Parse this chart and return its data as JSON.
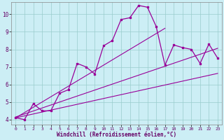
{
  "x": [
    0,
    1,
    2,
    3,
    4,
    5,
    6,
    7,
    8,
    9,
    10,
    11,
    12,
    13,
    14,
    15,
    16,
    17,
    18,
    19,
    20,
    21,
    22,
    23
  ],
  "line1": [
    4.1,
    4.0,
    4.9,
    4.5,
    4.5,
    5.5,
    5.7,
    7.2,
    7.0,
    6.6,
    8.2,
    8.5,
    9.7,
    9.8,
    10.5,
    10.4,
    9.3,
    7.1,
    8.25,
    8.1,
    8.0,
    7.2,
    8.3,
    7.5
  ],
  "reg1": [
    4.1,
    4.4,
    4.7,
    5.0,
    5.3,
    5.6,
    5.9,
    6.2,
    6.5,
    6.8,
    7.1,
    7.4,
    7.7,
    8.0,
    8.3,
    8.6,
    8.9,
    9.2,
    null,
    null,
    null,
    null,
    null,
    null
  ],
  "reg2": [
    4.15,
    4.32,
    4.49,
    4.66,
    4.83,
    5.0,
    5.17,
    5.34,
    5.51,
    5.68,
    5.85,
    6.02,
    6.19,
    6.36,
    6.53,
    6.7,
    6.87,
    7.04,
    7.21,
    7.38,
    7.55,
    7.72,
    7.89,
    8.06
  ],
  "reg3": [
    4.1,
    4.21,
    4.32,
    4.43,
    4.54,
    4.65,
    4.76,
    4.87,
    4.98,
    5.09,
    5.2,
    5.31,
    5.42,
    5.53,
    5.64,
    5.75,
    5.86,
    5.97,
    6.08,
    6.19,
    6.3,
    6.41,
    6.52,
    6.63
  ],
  "line_color": "#990099",
  "bg_color": "#cceef5",
  "grid_color": "#99cccc",
  "xlabel": "Windchill (Refroidissement éolien,°C)",
  "xlim": [
    -0.5,
    23.5
  ],
  "ylim": [
    3.7,
    10.7
  ],
  "yticks": [
    4,
    5,
    6,
    7,
    8,
    9,
    10
  ],
  "xticks": [
    0,
    1,
    2,
    3,
    4,
    5,
    6,
    7,
    8,
    9,
    10,
    11,
    12,
    13,
    14,
    15,
    16,
    17,
    18,
    19,
    20,
    21,
    22,
    23
  ]
}
